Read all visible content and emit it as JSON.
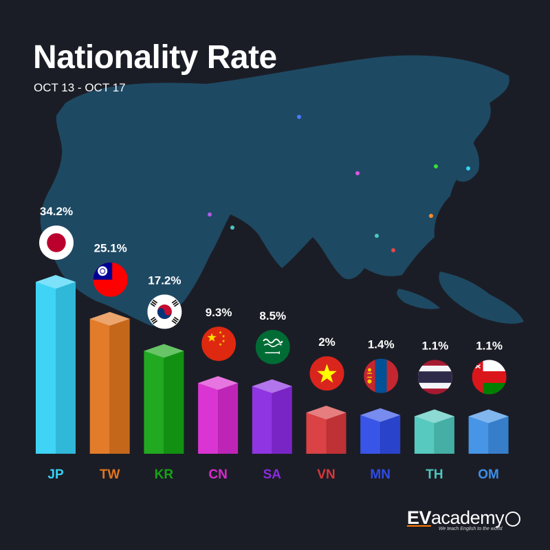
{
  "header": {
    "title": "Nationality Rate",
    "subtitle": "OCT 13 - OCT 17"
  },
  "brand": {
    "name_ev": "EV",
    "name_rest": "academy",
    "tagline": "We teach English to the world"
  },
  "colors": {
    "background": "#1b1d26",
    "map": "#1f4c66"
  },
  "chart_data": {
    "type": "bar",
    "title": "Nationality Rate",
    "subtitle": "OCT 13 - OCT 17",
    "categories": [
      "JP",
      "TW",
      "KR",
      "CN",
      "SA",
      "VN",
      "MN",
      "TH",
      "OM"
    ],
    "values": [
      34.2,
      25.1,
      17.2,
      9.3,
      8.5,
      2,
      1.4,
      1.1,
      1.1
    ],
    "value_labels": [
      "34.2%",
      "25.1%",
      "17.2%",
      "9.3%",
      "8.5%",
      "2%",
      "1.4%",
      "1.1%",
      "1.1%"
    ],
    "flags": [
      "japan-flag",
      "taiwan-flag",
      "south-korea-flag",
      "china-flag",
      "saudi-arabia-flag",
      "vietnam-flag",
      "mongolia-flag",
      "thailand-flag",
      "oman-flag"
    ],
    "colors": [
      "#35d1f5",
      "#e0751f",
      "#15a415",
      "#d82ad0",
      "#8a2ae0",
      "#d8383c",
      "#2f4ce6",
      "#4ec6bc",
      "#3d8fe6"
    ],
    "xlabel": "",
    "ylabel": "",
    "grid": false,
    "legend": "none"
  }
}
